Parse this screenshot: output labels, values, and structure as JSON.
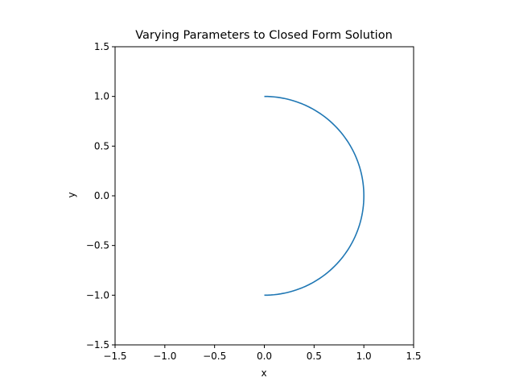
{
  "chart_data": {
    "type": "line",
    "title": "Varying Parameters to Closed Form Solution",
    "xlabel": "x",
    "ylabel": "y",
    "xlim": [
      -1.5,
      1.5
    ],
    "ylim": [
      -1.5,
      1.5
    ],
    "xticks": [
      -1.5,
      -1.0,
      -0.5,
      0.0,
      0.5,
      1.0,
      1.5
    ],
    "yticks": [
      -1.5,
      -1.0,
      -0.5,
      0.0,
      0.5,
      1.0,
      1.5
    ],
    "xtick_labels": [
      "−1.5",
      "−1.0",
      "−0.5",
      "0.0",
      "0.5",
      "1.0",
      "1.5"
    ],
    "ytick_labels": [
      "−1.5",
      "−1.0",
      "−0.5",
      "0.0",
      "0.5",
      "1.0",
      "1.5"
    ],
    "grid": false,
    "series": [
      {
        "color": "#1f77b4",
        "x": [
          0.0,
          0.259,
          0.5,
          0.707,
          0.866,
          0.966,
          1.0,
          0.966,
          0.866,
          0.707,
          0.5,
          0.259,
          0.0
        ],
        "y": [
          1.0,
          0.966,
          0.866,
          0.707,
          0.5,
          0.259,
          0.0,
          -0.259,
          -0.5,
          -0.707,
          -0.866,
          -0.966,
          -1.0
        ]
      }
    ]
  }
}
